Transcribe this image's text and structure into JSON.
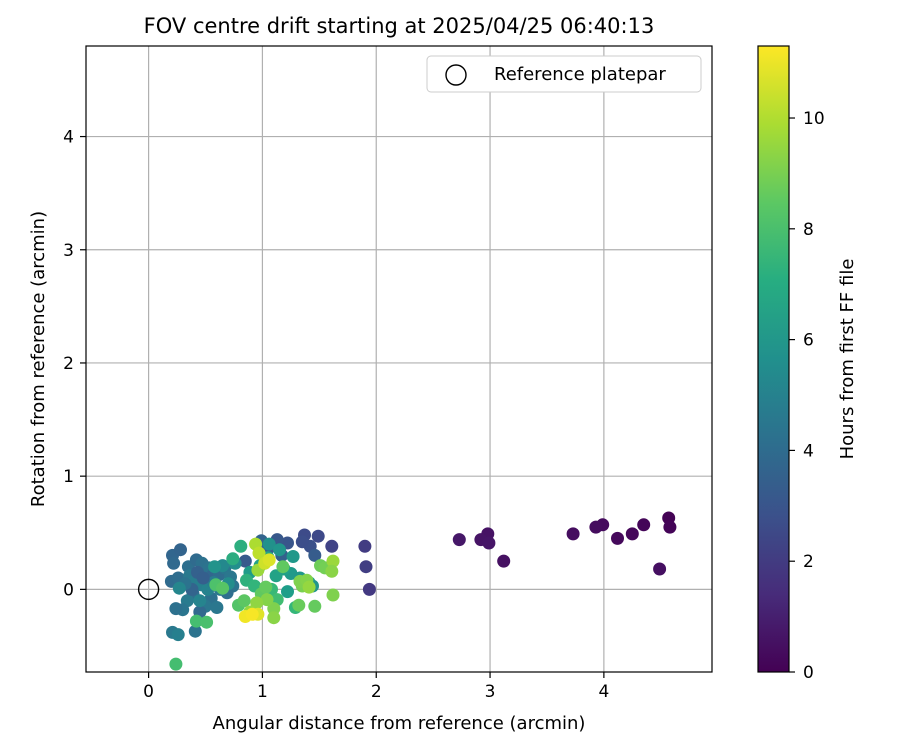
{
  "chart_data": {
    "type": "scatter",
    "title": "FOV centre drift starting at 2025/04/25 06:40:13",
    "xlabel": "Angular distance from reference (arcmin)",
    "ylabel": "Rotation from reference (arcmin)",
    "xlim": [
      -0.55,
      4.95
    ],
    "ylim": [
      -0.73,
      4.8
    ],
    "xticks": [
      0,
      1,
      2,
      3,
      4
    ],
    "yticks": [
      0,
      1,
      2,
      3,
      4
    ],
    "grid": true,
    "legend": {
      "placement": "top-right",
      "entries": [
        "Reference platepar"
      ]
    },
    "reference_point": {
      "x": 0,
      "y": 0,
      "label": "Reference platepar"
    },
    "colorbar": {
      "label": "Hours from first FF file",
      "min": 0,
      "max": 11.3,
      "ticks": [
        0,
        2,
        4,
        6,
        8,
        10
      ],
      "colormap": "viridis"
    },
    "points": [
      {
        "x": 4.57,
        "y": 0.63,
        "c": 0.05
      },
      {
        "x": 4.58,
        "y": 0.55,
        "c": 0.1
      },
      {
        "x": 4.35,
        "y": 0.57,
        "c": 0.15
      },
      {
        "x": 4.25,
        "y": 0.49,
        "c": 0.2
      },
      {
        "x": 4.12,
        "y": 0.45,
        "c": 0.25
      },
      {
        "x": 3.99,
        "y": 0.57,
        "c": 0.3
      },
      {
        "x": 3.93,
        "y": 0.55,
        "c": 0.35
      },
      {
        "x": 3.73,
        "y": 0.49,
        "c": 0.4
      },
      {
        "x": 4.49,
        "y": 0.18,
        "c": 0.45
      },
      {
        "x": 3.12,
        "y": 0.25,
        "c": 0.5
      },
      {
        "x": 2.98,
        "y": 0.49,
        "c": 0.55
      },
      {
        "x": 2.92,
        "y": 0.44,
        "c": 0.6
      },
      {
        "x": 2.99,
        "y": 0.41,
        "c": 0.65
      },
      {
        "x": 2.73,
        "y": 0.44,
        "c": 0.7
      },
      {
        "x": 1.94,
        "y": 0.0,
        "c": 1.9
      },
      {
        "x": 1.9,
        "y": 0.38,
        "c": 2.0
      },
      {
        "x": 1.91,
        "y": 0.2,
        "c": 2.1
      },
      {
        "x": 1.61,
        "y": 0.38,
        "c": 2.3
      },
      {
        "x": 1.49,
        "y": 0.47,
        "c": 2.5
      },
      {
        "x": 1.37,
        "y": 0.48,
        "c": 2.6
      },
      {
        "x": 1.42,
        "y": 0.38,
        "c": 2.8
      },
      {
        "x": 1.35,
        "y": 0.42,
        "c": 2.7
      },
      {
        "x": 1.22,
        "y": 0.41,
        "c": 3.0
      },
      {
        "x": 1.13,
        "y": 0.44,
        "c": 3.1
      },
      {
        "x": 0.85,
        "y": 0.25,
        "c": 3.2
      },
      {
        "x": 1.46,
        "y": 0.3,
        "c": 3.3
      },
      {
        "x": 1.05,
        "y": 0.36,
        "c": 3.4
      },
      {
        "x": 1.17,
        "y": 0.3,
        "c": 3.5
      },
      {
        "x": 0.99,
        "y": 0.43,
        "c": 3.6
      },
      {
        "x": 0.21,
        "y": 0.3,
        "c": 3.7
      },
      {
        "x": 0.28,
        "y": 0.35,
        "c": 3.6
      },
      {
        "x": 0.22,
        "y": 0.23,
        "c": 3.8
      },
      {
        "x": 0.2,
        "y": 0.07,
        "c": 3.9
      },
      {
        "x": 0.26,
        "y": 0.1,
        "c": 4.0
      },
      {
        "x": 0.35,
        "y": 0.2,
        "c": 4.1
      },
      {
        "x": 0.42,
        "y": 0.26,
        "c": 3.9
      },
      {
        "x": 0.47,
        "y": 0.23,
        "c": 4.2
      },
      {
        "x": 0.53,
        "y": 0.19,
        "c": 4.3
      },
      {
        "x": 0.56,
        "y": 0.12,
        "c": 3.7
      },
      {
        "x": 0.62,
        "y": 0.13,
        "c": 4.0
      },
      {
        "x": 0.67,
        "y": 0.19,
        "c": 4.4
      },
      {
        "x": 0.72,
        "y": 0.11,
        "c": 4.5
      },
      {
        "x": 0.74,
        "y": 0.03,
        "c": 4.3
      },
      {
        "x": 0.69,
        "y": -0.03,
        "c": 4.1
      },
      {
        "x": 0.63,
        "y": 0.0,
        "c": 4.6
      },
      {
        "x": 0.55,
        "y": -0.08,
        "c": 4.2
      },
      {
        "x": 0.5,
        "y": -0.15,
        "c": 4.5
      },
      {
        "x": 0.45,
        "y": -0.2,
        "c": 3.8
      },
      {
        "x": 0.39,
        "y": -0.04,
        "c": 4.0
      },
      {
        "x": 0.34,
        "y": -0.1,
        "c": 4.7
      },
      {
        "x": 0.3,
        "y": -0.18,
        "c": 4.4
      },
      {
        "x": 0.24,
        "y": -0.17,
        "c": 4.2
      },
      {
        "x": 0.36,
        "y": 0.12,
        "c": 4.6
      },
      {
        "x": 0.41,
        "y": 0.08,
        "c": 4.8
      },
      {
        "x": 0.46,
        "y": 0.04,
        "c": 4.9
      },
      {
        "x": 0.52,
        "y": 0.0,
        "c": 5.0
      },
      {
        "x": 0.57,
        "y": 0.06,
        "c": 4.8
      },
      {
        "x": 0.6,
        "y": -0.16,
        "c": 4.5
      },
      {
        "x": 0.43,
        "y": 0.15,
        "c": 3.5
      },
      {
        "x": 0.48,
        "y": 0.1,
        "c": 3.4
      },
      {
        "x": 0.38,
        "y": 0.0,
        "c": 3.6
      },
      {
        "x": 0.32,
        "y": 0.05,
        "c": 4.3
      },
      {
        "x": 0.27,
        "y": 0.01,
        "c": 5.2
      },
      {
        "x": 0.21,
        "y": -0.38,
        "c": 4.6
      },
      {
        "x": 0.26,
        "y": -0.4,
        "c": 4.9
      },
      {
        "x": 0.41,
        "y": -0.37,
        "c": 4.3
      },
      {
        "x": 0.45,
        "y": -0.1,
        "c": 5.1
      },
      {
        "x": 0.65,
        "y": 0.21,
        "c": 5.3
      },
      {
        "x": 0.76,
        "y": 0.23,
        "c": 5.6
      },
      {
        "x": 0.7,
        "y": 0.05,
        "c": 5.5
      },
      {
        "x": 0.58,
        "y": 0.2,
        "c": 5.8
      },
      {
        "x": 1.06,
        "y": 0.4,
        "c": 5.7
      },
      {
        "x": 1.15,
        "y": 0.35,
        "c": 5.9
      },
      {
        "x": 1.27,
        "y": 0.29,
        "c": 6.0
      },
      {
        "x": 1.25,
        "y": 0.14,
        "c": 6.1
      },
      {
        "x": 1.33,
        "y": 0.1,
        "c": 6.0
      },
      {
        "x": 1.41,
        "y": 0.06,
        "c": 6.2
      },
      {
        "x": 1.44,
        "y": 0.03,
        "c": 5.9
      },
      {
        "x": 1.22,
        "y": -0.02,
        "c": 6.3
      },
      {
        "x": 1.19,
        "y": 0.18,
        "c": 6.4
      },
      {
        "x": 1.12,
        "y": 0.12,
        "c": 6.5
      },
      {
        "x": 1.05,
        "y": 0.28,
        "c": 6.6
      },
      {
        "x": 0.98,
        "y": 0.21,
        "c": 6.5
      },
      {
        "x": 0.89,
        "y": 0.15,
        "c": 6.2
      },
      {
        "x": 0.81,
        "y": 0.38,
        "c": 7.1
      },
      {
        "x": 0.74,
        "y": 0.27,
        "c": 7.0
      },
      {
        "x": 0.86,
        "y": 0.08,
        "c": 7.2
      },
      {
        "x": 0.93,
        "y": 0.03,
        "c": 7.4
      },
      {
        "x": 1.08,
        "y": 0.0,
        "c": 7.6
      },
      {
        "x": 1.29,
        "y": -0.16,
        "c": 7.5
      },
      {
        "x": 1.13,
        "y": -0.09,
        "c": 7.8
      },
      {
        "x": 0.24,
        "y": -0.66,
        "c": 7.9
      },
      {
        "x": 0.42,
        "y": -0.28,
        "c": 7.9
      },
      {
        "x": 0.51,
        "y": -0.29,
        "c": 8.0
      },
      {
        "x": 0.59,
        "y": 0.04,
        "c": 8.1
      },
      {
        "x": 0.65,
        "y": 0.01,
        "c": 8.3
      },
      {
        "x": 0.79,
        "y": -0.14,
        "c": 8.2
      },
      {
        "x": 0.84,
        "y": -0.1,
        "c": 8.4
      },
      {
        "x": 0.99,
        "y": -0.04,
        "c": 8.5
      },
      {
        "x": 1.03,
        "y": 0.02,
        "c": 8.6
      },
      {
        "x": 1.18,
        "y": 0.2,
        "c": 8.5
      },
      {
        "x": 1.32,
        "y": -0.14,
        "c": 8.7
      },
      {
        "x": 1.46,
        "y": -0.15,
        "c": 8.6
      },
      {
        "x": 1.51,
        "y": 0.21,
        "c": 8.8
      },
      {
        "x": 1.55,
        "y": 0.19,
        "c": 8.9
      },
      {
        "x": 1.35,
        "y": 0.03,
        "c": 9.0
      },
      {
        "x": 1.33,
        "y": 0.07,
        "c": 9.1
      },
      {
        "x": 1.39,
        "y": 0.08,
        "c": 9.2
      },
      {
        "x": 1.1,
        "y": -0.17,
        "c": 9.1
      },
      {
        "x": 1.1,
        "y": -0.25,
        "c": 9.3
      },
      {
        "x": 1.04,
        "y": -0.09,
        "c": 9.2
      },
      {
        "x": 0.95,
        "y": -0.12,
        "c": 9.4
      },
      {
        "x": 0.89,
        "y": -0.2,
        "c": 9.5
      },
      {
        "x": 1.62,
        "y": 0.25,
        "c": 9.6
      },
      {
        "x": 1.61,
        "y": 0.16,
        "c": 9.3
      },
      {
        "x": 1.62,
        "y": -0.05,
        "c": 9.1
      },
      {
        "x": 1.41,
        "y": 0.02,
        "c": 9.5
      },
      {
        "x": 0.96,
        "y": 0.17,
        "c": 9.6
      },
      {
        "x": 0.94,
        "y": 0.4,
        "c": 9.9
      },
      {
        "x": 0.97,
        "y": 0.32,
        "c": 10.2
      },
      {
        "x": 1.02,
        "y": 0.23,
        "c": 10.5
      },
      {
        "x": 1.06,
        "y": 0.26,
        "c": 10.7
      },
      {
        "x": 0.96,
        "y": -0.22,
        "c": 10.8
      },
      {
        "x": 0.85,
        "y": -0.24,
        "c": 11.1
      },
      {
        "x": 0.91,
        "y": -0.22,
        "c": 11.2
      }
    ]
  }
}
